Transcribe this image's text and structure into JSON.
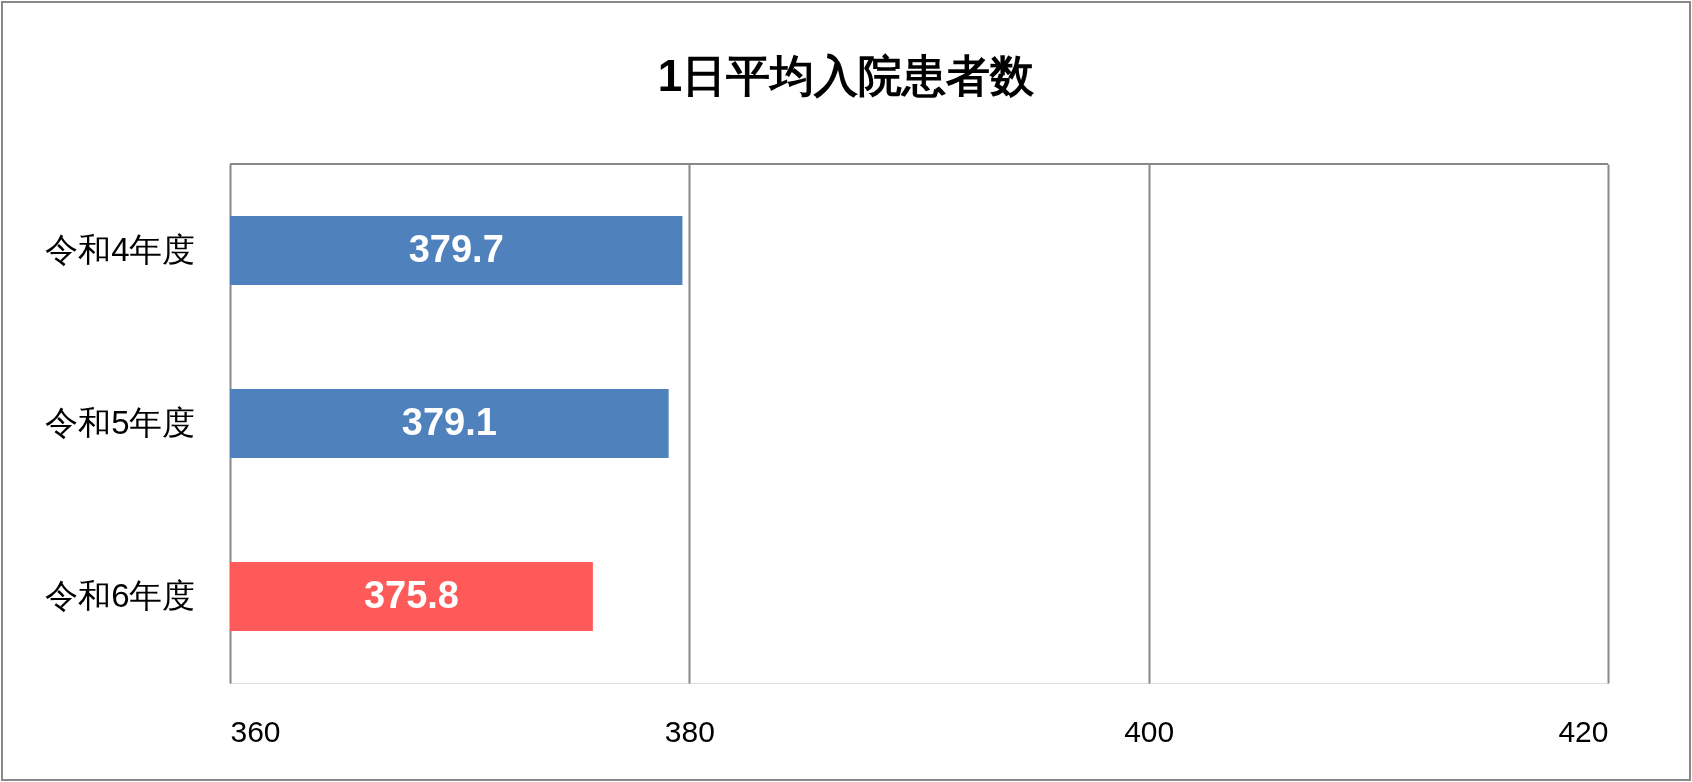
{
  "chart_data": {
    "type": "bar",
    "orientation": "horizontal",
    "title": "1日平均入院患者数",
    "categories": [
      "令和4年度",
      "令和5年度",
      "令和6年度"
    ],
    "values": [
      379.7,
      379.1,
      375.8
    ],
    "colors": [
      "#4f81bd",
      "#4f81bd",
      "#ff5a5a"
    ],
    "xlim": [
      360,
      420
    ],
    "xticks": [
      360,
      380,
      400,
      420
    ],
    "grid": "x",
    "data_labels": true
  }
}
